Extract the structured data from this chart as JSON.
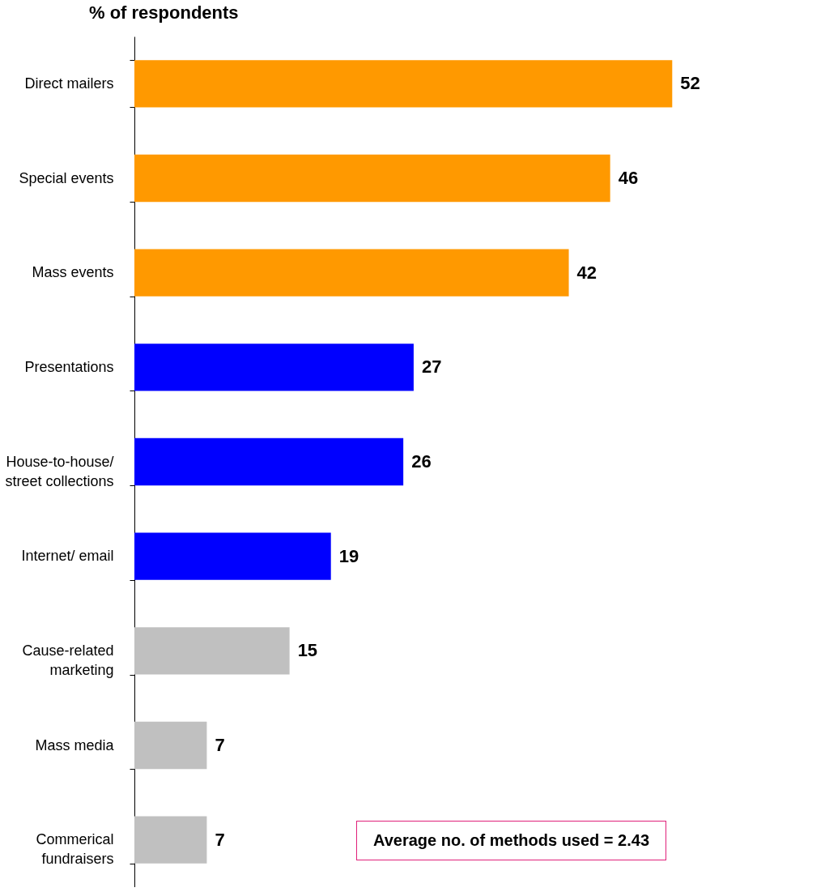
{
  "chart_data": {
    "type": "bar",
    "orientation": "horizontal",
    "title": "% of respondents",
    "categories": [
      "Direct mailers",
      "Special events",
      "Mass events",
      "Presentations",
      "House-to-house/\nstreet collections",
      "Internet/ email",
      "Cause-related\nmarketing",
      "Mass media",
      "Commerical\nfundraisers"
    ],
    "values": [
      52,
      46,
      42,
      27,
      26,
      19,
      15,
      7,
      7
    ],
    "colors": [
      "#ff9900",
      "#ff9900",
      "#ff9900",
      "#0000ff",
      "#0000ff",
      "#0000ff",
      "#c0c0c0",
      "#c0c0c0",
      "#c0c0c0"
    ],
    "data_labels": true,
    "annotations": [
      "Average no. of methods used = 2.43"
    ]
  }
}
